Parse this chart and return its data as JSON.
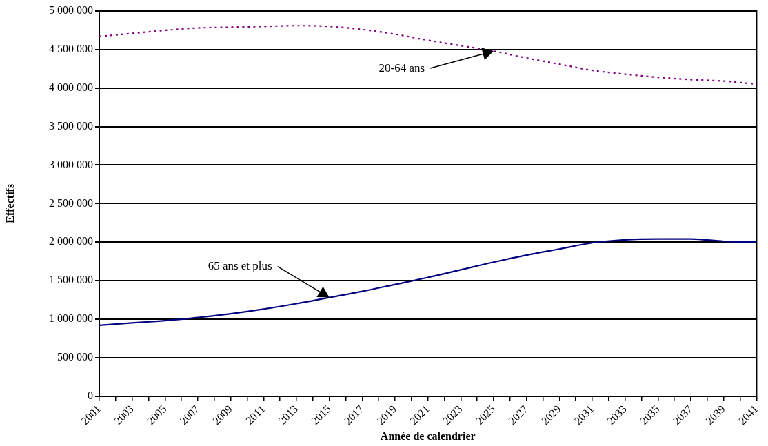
{
  "chart_data": {
    "type": "line",
    "xlabel": "Année de calendrier",
    "ylabel": "Effectifs",
    "x": [
      2001,
      2003,
      2005,
      2007,
      2009,
      2011,
      2013,
      2015,
      2017,
      2019,
      2021,
      2023,
      2025,
      2027,
      2029,
      2031,
      2033,
      2035,
      2037,
      2039,
      2041
    ],
    "series": [
      {
        "name": "20-64 ans",
        "color": "#800080",
        "line_style": "dotted",
        "values": [
          4670000,
          4710000,
          4750000,
          4780000,
          4790000,
          4800000,
          4810000,
          4800000,
          4760000,
          4700000,
          4620000,
          4550000,
          4480000,
          4390000,
          4310000,
          4230000,
          4180000,
          4140000,
          4110000,
          4090000,
          4050000
        ]
      },
      {
        "name": "65 ans et plus",
        "color": "#000080",
        "line_style": "solid",
        "values": [
          920000,
          950000,
          980000,
          1020000,
          1070000,
          1130000,
          1200000,
          1280000,
          1360000,
          1450000,
          1540000,
          1640000,
          1740000,
          1830000,
          1910000,
          1990000,
          2030000,
          2040000,
          2040000,
          2010000,
          2000000
        ]
      }
    ],
    "xlim": [
      2001,
      2041
    ],
    "xticks": [
      2001,
      {
        "value": 2002,
        "label": null
      },
      2003,
      {
        "value": 2004,
        "label": null
      },
      2005,
      {
        "value": 2006,
        "label": null
      },
      2007,
      {
        "value": 2008,
        "label": null
      },
      2009,
      {
        "value": 2010,
        "label": null
      },
      2011,
      {
        "value": 2012,
        "label": null
      },
      2013,
      {
        "value": 2014,
        "label": null
      },
      2015,
      {
        "value": 2016,
        "label": null
      },
      2017,
      {
        "value": 2018,
        "label": null
      },
      2019,
      {
        "value": 2020,
        "label": null
      },
      2021,
      {
        "value": 2022,
        "label": null
      },
      2023,
      {
        "value": 2024,
        "label": null
      },
      2025,
      {
        "value": 2026,
        "label": null
      },
      2027,
      {
        "value": 2028,
        "label": null
      },
      2029,
      {
        "value": 2030,
        "label": null
      },
      2031,
      {
        "value": 2032,
        "label": null
      },
      2033,
      {
        "value": 2034,
        "label": null
      },
      2035,
      {
        "value": 2036,
        "label": null
      },
      2037,
      {
        "value": 2038,
        "label": null
      },
      2039,
      {
        "value": 2040,
        "label": null
      },
      2041
    ],
    "ylim": [
      0,
      5000000
    ],
    "yticks": [
      0,
      {
        "value": 500000,
        "label": "500 000"
      },
      {
        "value": 1000000,
        "label": "1 000 000"
      },
      {
        "value": 1500000,
        "label": "1 500 000"
      },
      {
        "value": 2000000,
        "label": "2 000 000"
      },
      {
        "value": 2500000,
        "label": "2 500 000"
      },
      {
        "value": 3000000,
        "label": "3 000 000"
      },
      {
        "value": 3500000,
        "label": "3 500 000"
      },
      {
        "value": 4000000,
        "label": "4 000 000"
      },
      {
        "value": 4500000,
        "label": "4 500 000"
      },
      {
        "value": 5000000,
        "label": "5 000 000"
      }
    ],
    "grid": "y",
    "legend": false,
    "marker": "none"
  }
}
